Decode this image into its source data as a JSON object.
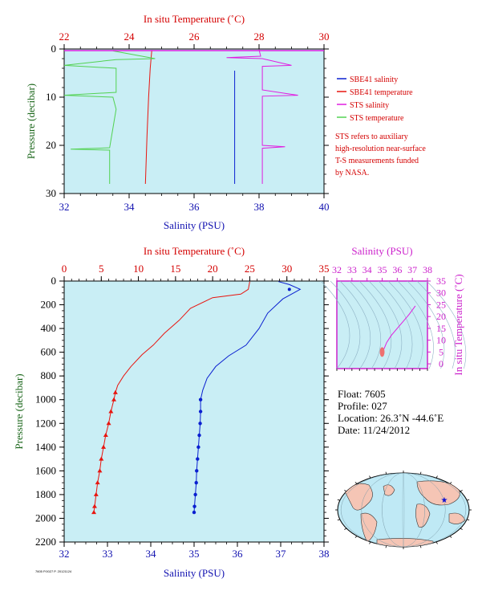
{
  "colors": {
    "plot_bg": "#c9eef5",
    "sbe41_salinity": "#0a1fd0",
    "sbe41_temperature": "#e8150f",
    "sts_salinity": "#e01ee0",
    "sts_temperature": "#52d252",
    "label_red": "#d40000",
    "label_blue": "#1010b0",
    "label_green": "#1a661a",
    "label_magenta": "#cc22cc"
  },
  "top_panel": {
    "top_axis_title": "In situ Temperature (˚C)",
    "bottom_axis_title": "Salinity (PSU)",
    "y_axis_title": "Pressure (decibar)",
    "legend": [
      {
        "label": "SBE41 salinity",
        "color": "#0a1fd0"
      },
      {
        "label": "SBE41 temperature",
        "color": "#e8150f"
      },
      {
        "label": "STS salinity",
        "color": "#e01ee0"
      },
      {
        "label": "STS temperature",
        "color": "#52d252"
      }
    ],
    "note": [
      "STS refers to auxiliary",
      "high-resolution near-surface",
      "T-S measurements funded",
      "by NASA."
    ]
  },
  "bottom_panel": {
    "top_axis_title": "In situ Temperature (˚C)",
    "bottom_axis_title": "Salinity (PSU)",
    "y_axis_title": "Pressure (decibar)"
  },
  "ts_panel": {
    "top_axis_title": "Salinity (PSU)",
    "right_axis_title": "In situ Temperature (˚C)"
  },
  "info": {
    "float": "Float: 7605",
    "profile": "Profile: 027",
    "location": "Location: 26.3˚N -44.6˚E",
    "date": "Date: 11/24/2012"
  },
  "footer_tiny": "7605 P.0027 P. 20121124",
  "chart_data": [
    {
      "type": "line",
      "panel": "near-surface",
      "x_bottom": {
        "label": "Salinity (PSU)",
        "range": [
          32,
          40
        ],
        "ticks": [
          32,
          34,
          36,
          38,
          40
        ]
      },
      "x_top": {
        "label": "In situ Temperature (˚C)",
        "range": [
          22,
          30
        ],
        "ticks": [
          22,
          24,
          26,
          28,
          30
        ]
      },
      "y": {
        "label": "Pressure (decibar)",
        "range": [
          0,
          30
        ],
        "ticks": [
          0,
          10,
          20,
          30
        ],
        "inverted": true
      },
      "series": [
        {
          "name": "SBE41 salinity",
          "axis": "salinity",
          "points": [
            [
              37.25,
              4.5
            ],
            [
              37.25,
              10
            ],
            [
              37.25,
              28
            ]
          ]
        },
        {
          "name": "SBE41 temperature",
          "axis": "temperature",
          "points": [
            [
              24.7,
              0.2
            ],
            [
              24.65,
              4
            ],
            [
              24.6,
              10
            ],
            [
              24.55,
              18
            ],
            [
              24.5,
              28
            ]
          ]
        },
        {
          "name": "STS salinity",
          "axis": "salinity",
          "points": [
            [
              38.0,
              0.1
            ],
            [
              38.05,
              1.5
            ],
            [
              37.0,
              1.8
            ],
            [
              38.1,
              2
            ],
            [
              39.0,
              3.4
            ],
            [
              38.1,
              3.6
            ],
            [
              38.1,
              8.5
            ],
            [
              38.8,
              9.2
            ],
            [
              39.2,
              9.6
            ],
            [
              38.1,
              9.8
            ],
            [
              38.1,
              20
            ],
            [
              38.8,
              20.3
            ],
            [
              38.1,
              20.6
            ],
            [
              38.1,
              28
            ]
          ]
        },
        {
          "name": "STS temperature",
          "axis": "temperature",
          "points": [
            [
              23.5,
              0.4
            ],
            [
              24.8,
              2
            ],
            [
              23.6,
              2.2
            ],
            [
              22.0,
              3.4
            ],
            [
              23.6,
              4
            ],
            [
              23.6,
              9
            ],
            [
              22.0,
              9.6
            ],
            [
              23.5,
              10
            ],
            [
              23.6,
              12.5
            ],
            [
              23.4,
              20.5
            ],
            [
              22.2,
              20.8
            ],
            [
              23.4,
              21
            ],
            [
              23.4,
              28
            ]
          ]
        }
      ]
    },
    {
      "type": "line",
      "panel": "full-profile",
      "x_bottom": {
        "label": "Salinity (PSU)",
        "range": [
          32,
          38
        ],
        "ticks": [
          32,
          33,
          34,
          35,
          36,
          37,
          38
        ]
      },
      "x_top": {
        "label": "In situ Temperature (˚C)",
        "range": [
          0,
          35
        ],
        "ticks": [
          0,
          5,
          10,
          15,
          20,
          25,
          30,
          35
        ]
      },
      "y": {
        "label": "Pressure (decibar)",
        "range": [
          0,
          2200
        ],
        "ticks": [
          0,
          200,
          400,
          600,
          800,
          1000,
          1200,
          1400,
          1600,
          1800,
          2000,
          2200
        ],
        "inverted": true
      },
      "series": [
        {
          "name": "SBE41 temperature",
          "axis": "temperature",
          "points": [
            [
              25,
              5
            ],
            [
              24.8,
              70
            ],
            [
              23.8,
              110
            ],
            [
              20,
              140
            ],
            [
              17,
              230
            ],
            [
              15.5,
              330
            ],
            [
              13.5,
              440
            ],
            [
              12,
              540
            ],
            [
              10.5,
              620
            ],
            [
              9,
              720
            ],
            [
              8,
              800
            ],
            [
              7.2,
              880
            ],
            [
              6.9,
              940
            ],
            [
              6.7,
              1000
            ],
            [
              6.3,
              1100
            ],
            [
              6,
              1200
            ],
            [
              5.6,
              1300
            ],
            [
              5.3,
              1400
            ],
            [
              5,
              1500
            ],
            [
              4.8,
              1600
            ],
            [
              4.5,
              1700
            ],
            [
              4.3,
              1800
            ],
            [
              4.1,
              1900
            ],
            [
              4,
              1950
            ]
          ]
        },
        {
          "name": "SBE41 salinity",
          "axis": "salinity",
          "points": [
            [
              36.95,
              5
            ],
            [
              37.2,
              30
            ],
            [
              37.45,
              70
            ],
            [
              37.3,
              100
            ],
            [
              37.05,
              150
            ],
            [
              36.7,
              270
            ],
            [
              36.5,
              400
            ],
            [
              36.2,
              540
            ],
            [
              35.8,
              630
            ],
            [
              35.5,
              720
            ],
            [
              35.3,
              820
            ],
            [
              35.2,
              920
            ],
            [
              35.15,
              1000
            ],
            [
              35.15,
              1100
            ],
            [
              35.14,
              1200
            ],
            [
              35.12,
              1300
            ],
            [
              35.1,
              1400
            ],
            [
              35.08,
              1500
            ],
            [
              35.06,
              1600
            ],
            [
              35.05,
              1700
            ],
            [
              35.03,
              1800
            ],
            [
              35.01,
              1900
            ],
            [
              35.0,
              1950
            ]
          ]
        }
      ]
    },
    {
      "type": "scatter",
      "panel": "T-S diagram",
      "x": {
        "label": "Salinity (PSU)",
        "range": [
          32,
          38
        ],
        "ticks": [
          32,
          33,
          34,
          35,
          36,
          37,
          38
        ]
      },
      "y": {
        "label": "In situ Temperature (˚C)",
        "range": [
          -2,
          35
        ],
        "ticks": [
          0,
          5,
          10,
          15,
          20,
          25,
          30,
          35
        ]
      },
      "series": [
        {
          "name": "profile",
          "points": [
            [
              35.0,
              4
            ],
            [
              35.1,
              6
            ],
            [
              35.3,
              9
            ],
            [
              35.6,
              12
            ],
            [
              36.0,
              15
            ],
            [
              36.4,
              18
            ],
            [
              36.8,
              21
            ],
            [
              37.2,
              24.5
            ]
          ]
        }
      ]
    }
  ]
}
